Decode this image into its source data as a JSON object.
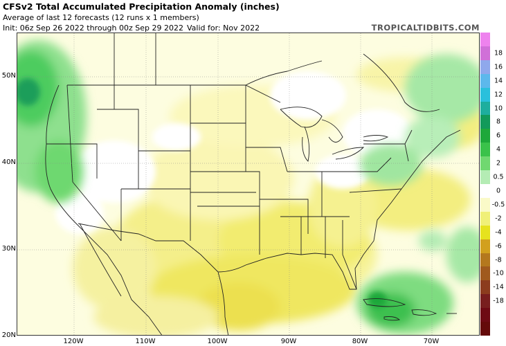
{
  "header": {
    "title": "CFSv2 Total Accumulated Precipitation Anomaly (inches)",
    "subtitle": "Average of last 12 forecasts (12 runs x 1 members)",
    "init": "Init: 06z Sep 26 2022 through 00z Sep 29 2022",
    "valid": "Valid for: Nov 2022",
    "watermark": "TROPICALTIDBITS.COM"
  },
  "axes": {
    "lat_labels": [
      "50N",
      "40N",
      "30N",
      "20N"
    ],
    "lon_labels": [
      "120W",
      "110W",
      "100W",
      "90W",
      "80W",
      "70W"
    ]
  },
  "colorbar": {
    "labels": [
      "18",
      "16",
      "14",
      "12",
      "10",
      "8",
      "6",
      "4",
      "2",
      "0.5",
      "0",
      "-0.5",
      "-2",
      "-4",
      "-6",
      "-8",
      "-10",
      "-14",
      "-18"
    ],
    "colors": [
      "#ee82ee",
      "#d070d8",
      "#8fa8ec",
      "#5cb8ec",
      "#2ac0dc",
      "#1eae9e",
      "#129a5a",
      "#1ea83a",
      "#3ac24a",
      "#70d870",
      "#b4ecb4",
      "#ffffff",
      "#fafac8",
      "#f0f078",
      "#e6e21e",
      "#d2a01e",
      "#b4781e",
      "#a05a1e",
      "#8c3c1e",
      "#781e1e",
      "#6e0a14",
      "#640a0a"
    ]
  },
  "map": {
    "features": [
      "US state borders",
      "Canada provinces",
      "Mexico states",
      "Great Lakes",
      "Caribbean islands"
    ],
    "anomaly_regions": [
      {
        "region": "Pacific Northwest / British Columbia",
        "tendency": "wet"
      },
      {
        "region": "Northeast US / Mid-Atlantic",
        "tendency": "wet"
      },
      {
        "region": "Caribbean / Gulf Stream",
        "tendency": "wet"
      },
      {
        "region": "Southern Plains / Gulf Coast / Mexico",
        "tendency": "dry"
      },
      {
        "region": "Southeast US / Western Atlantic",
        "tendency": "dry"
      }
    ]
  }
}
